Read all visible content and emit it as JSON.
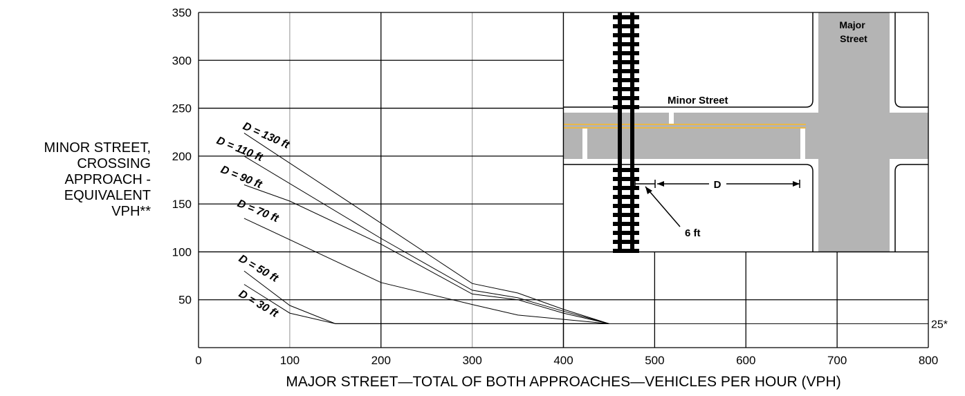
{
  "chart_data": {
    "type": "line",
    "title": "",
    "xlabel": "MAJOR STREET—TOTAL OF BOTH APPROACHES—VEHICLES PER HOUR (VPH)",
    "ylabel_lines": [
      "MINOR STREET,",
      "CROSSING",
      "APPROACH -",
      "EQUIVALENT",
      "VPH**"
    ],
    "xlim": [
      0,
      800
    ],
    "ylim": [
      0,
      350
    ],
    "x_ticks": [
      0,
      100,
      200,
      300,
      400,
      500,
      600,
      700,
      800
    ],
    "y_ticks": [
      50,
      100,
      150,
      200,
      250,
      300,
      350
    ],
    "grid": true,
    "floor_line": {
      "value": 25,
      "label": "25*"
    },
    "series": [
      {
        "name": "D = 130 ft",
        "points": [
          [
            50,
            224
          ],
          [
            200,
            130
          ],
          [
            300,
            67
          ],
          [
            350,
            57
          ],
          [
            400,
            40
          ],
          [
            450,
            25
          ]
        ]
      },
      {
        "name": "D = 110 ft",
        "points": [
          [
            50,
            200
          ],
          [
            200,
            114
          ],
          [
            300,
            60
          ],
          [
            350,
            52
          ],
          [
            400,
            38
          ],
          [
            450,
            25
          ]
        ]
      },
      {
        "name": "D = 90 ft",
        "points": [
          [
            50,
            170
          ],
          [
            100,
            153
          ],
          [
            200,
            108
          ],
          [
            300,
            56
          ],
          [
            350,
            50
          ],
          [
            400,
            36
          ],
          [
            450,
            25
          ]
        ]
      },
      {
        "name": "D = 70 ft",
        "points": [
          [
            50,
            135
          ],
          [
            200,
            68
          ],
          [
            300,
            45
          ],
          [
            350,
            34
          ],
          [
            450,
            25
          ]
        ]
      },
      {
        "name": "D = 50 ft",
        "points": [
          [
            50,
            80
          ],
          [
            100,
            44
          ],
          [
            150,
            25
          ],
          [
            450,
            25
          ]
        ]
      },
      {
        "name": "D = 30 ft",
        "points": [
          [
            50,
            66
          ],
          [
            100,
            36
          ],
          [
            150,
            25
          ],
          [
            450,
            25
          ]
        ]
      }
    ]
  },
  "inset": {
    "major_street_label": [
      "Major",
      "Street"
    ],
    "minor_street_label": "Minor Street",
    "distance_label": "D",
    "offset_label": "6 ft",
    "colors": {
      "road": "#b4b4b4",
      "centerline": "#e9b84a",
      "track": "#000000"
    }
  }
}
